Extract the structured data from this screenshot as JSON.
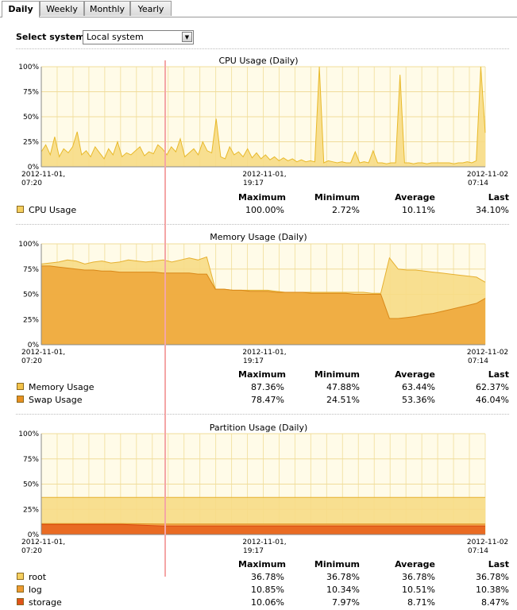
{
  "tabs": [
    {
      "label": "Daily",
      "active": true
    },
    {
      "label": "Weekly",
      "active": false
    },
    {
      "label": "Monthly",
      "active": false
    },
    {
      "label": "Yearly",
      "active": false
    }
  ],
  "select_system": {
    "label": "Select system:",
    "value": "Local system"
  },
  "stats_headers": {
    "max": "Maximum",
    "min": "Minimum",
    "avg": "Average",
    "last": "Last"
  },
  "x_ticks": [
    {
      "line1": "2012-11-01,",
      "line2": "07:20"
    },
    {
      "line1": "2012-11-01,",
      "line2": "19:17"
    },
    {
      "line1": "2012-11-02",
      "line2": "07:14"
    }
  ],
  "y_ticks": [
    "100%",
    "75%",
    "50%",
    "25%",
    "0%"
  ],
  "charts": {
    "cpu": {
      "title": "CPU Usage (Daily)",
      "series": [
        {
          "name": "CPU Usage",
          "color": "#f5cf5f",
          "max": "100.00%",
          "min": "2.72%",
          "avg": "10.11%",
          "last": "34.10%"
        }
      ]
    },
    "memory": {
      "title": "Memory Usage (Daily)",
      "series": [
        {
          "name": "Memory Usage",
          "color": "#f2c24a",
          "max": "87.36%",
          "min": "47.88%",
          "avg": "63.44%",
          "last": "62.37%"
        },
        {
          "name": "Swap Usage",
          "color": "#e89020",
          "max": "78.47%",
          "min": "24.51%",
          "avg": "53.36%",
          "last": "46.04%"
        }
      ]
    },
    "partition": {
      "title": "Partition Usage (Daily)",
      "series": [
        {
          "name": "root",
          "color": "#f5cf5f",
          "max": "36.78%",
          "min": "36.78%",
          "avg": "36.78%",
          "last": "36.78%"
        },
        {
          "name": "log",
          "color": "#ee9a30",
          "max": "10.85%",
          "min": "10.34%",
          "avg": "10.51%",
          "last": "10.38%"
        },
        {
          "name": "storage",
          "color": "#e0521a",
          "max": "10.06%",
          "min": "7.97%",
          "avg": "8.71%",
          "last": "8.47%"
        }
      ]
    }
  },
  "chart_data": [
    {
      "type": "area",
      "title": "CPU Usage (Daily)",
      "ylim": [
        0,
        100
      ],
      "x_tick_labels": [
        "2012-11-01, 07:20",
        "2012-11-01, 19:17",
        "2012-11-02 07:14"
      ],
      "series": [
        {
          "name": "CPU Usage",
          "values": [
            15,
            22,
            12,
            30,
            10,
            18,
            14,
            20,
            35,
            12,
            16,
            10,
            20,
            14,
            8,
            18,
            12,
            25,
            10,
            14,
            12,
            16,
            20,
            11,
            15,
            13,
            22,
            18,
            12,
            20,
            15,
            28,
            10,
            14,
            18,
            12,
            25,
            16,
            14,
            48,
            10,
            8,
            20,
            12,
            15,
            10,
            18,
            9,
            14,
            8,
            12,
            7,
            10,
            6,
            9,
            6,
            8,
            5,
            7,
            5,
            6,
            5,
            100,
            4,
            6,
            5,
            4,
            5,
            4,
            4,
            15,
            4,
            5,
            4,
            16,
            4,
            4,
            3,
            4,
            4,
            92,
            4,
            4,
            3,
            4,
            4,
            3,
            4,
            4,
            4,
            4,
            4,
            3,
            4,
            4,
            5,
            4,
            6,
            100,
            34
          ]
        }
      ]
    },
    {
      "type": "area",
      "title": "Memory Usage (Daily)",
      "ylim": [
        0,
        100
      ],
      "x_tick_labels": [
        "2012-11-01, 07:20",
        "2012-11-01, 19:17",
        "2012-11-02 07:14"
      ],
      "series": [
        {
          "name": "Memory Usage",
          "values": [
            80,
            81,
            82,
            84,
            83,
            80,
            82,
            83,
            81,
            82,
            84,
            83,
            82,
            83,
            84,
            82,
            84,
            86,
            84,
            87,
            55,
            55,
            54,
            54,
            54,
            54,
            54,
            53,
            52,
            52,
            52,
            52,
            52,
            52,
            52,
            52,
            52,
            52,
            51,
            51,
            86,
            75,
            74,
            74,
            73,
            72,
            71,
            70,
            69,
            68,
            67,
            62
          ]
        },
        {
          "name": "Swap Usage",
          "values": [
            78,
            78,
            77,
            76,
            75,
            74,
            74,
            73,
            73,
            72,
            72,
            72,
            72,
            72,
            71,
            71,
            71,
            71,
            70,
            70,
            55,
            55,
            54,
            54,
            53,
            53,
            53,
            52,
            52,
            52,
            52,
            51,
            51,
            51,
            51,
            51,
            50,
            50,
            50,
            50,
            26,
            26,
            27,
            28,
            30,
            31,
            33,
            35,
            37,
            39,
            41,
            46
          ]
        }
      ]
    },
    {
      "type": "area",
      "title": "Partition Usage (Daily)",
      "ylim": [
        0,
        100
      ],
      "x_tick_labels": [
        "2012-11-01, 07:20",
        "2012-11-01, 19:17",
        "2012-11-02 07:14"
      ],
      "series": [
        {
          "name": "root",
          "values": [
            36.78,
            36.78,
            36.78,
            36.78,
            36.78,
            36.78,
            36.78,
            36.78,
            36.78,
            36.78,
            36.78,
            36.78
          ]
        },
        {
          "name": "log",
          "values": [
            10.85,
            10.85,
            10.85,
            10.5,
            10.45,
            10.42,
            10.4,
            10.4,
            10.39,
            10.38,
            10.38,
            10.38
          ]
        },
        {
          "name": "storage",
          "values": [
            10.06,
            10.06,
            10.06,
            8.5,
            8.5,
            8.5,
            8.5,
            8.5,
            8.5,
            8.5,
            8.5,
            8.47
          ]
        }
      ]
    }
  ]
}
